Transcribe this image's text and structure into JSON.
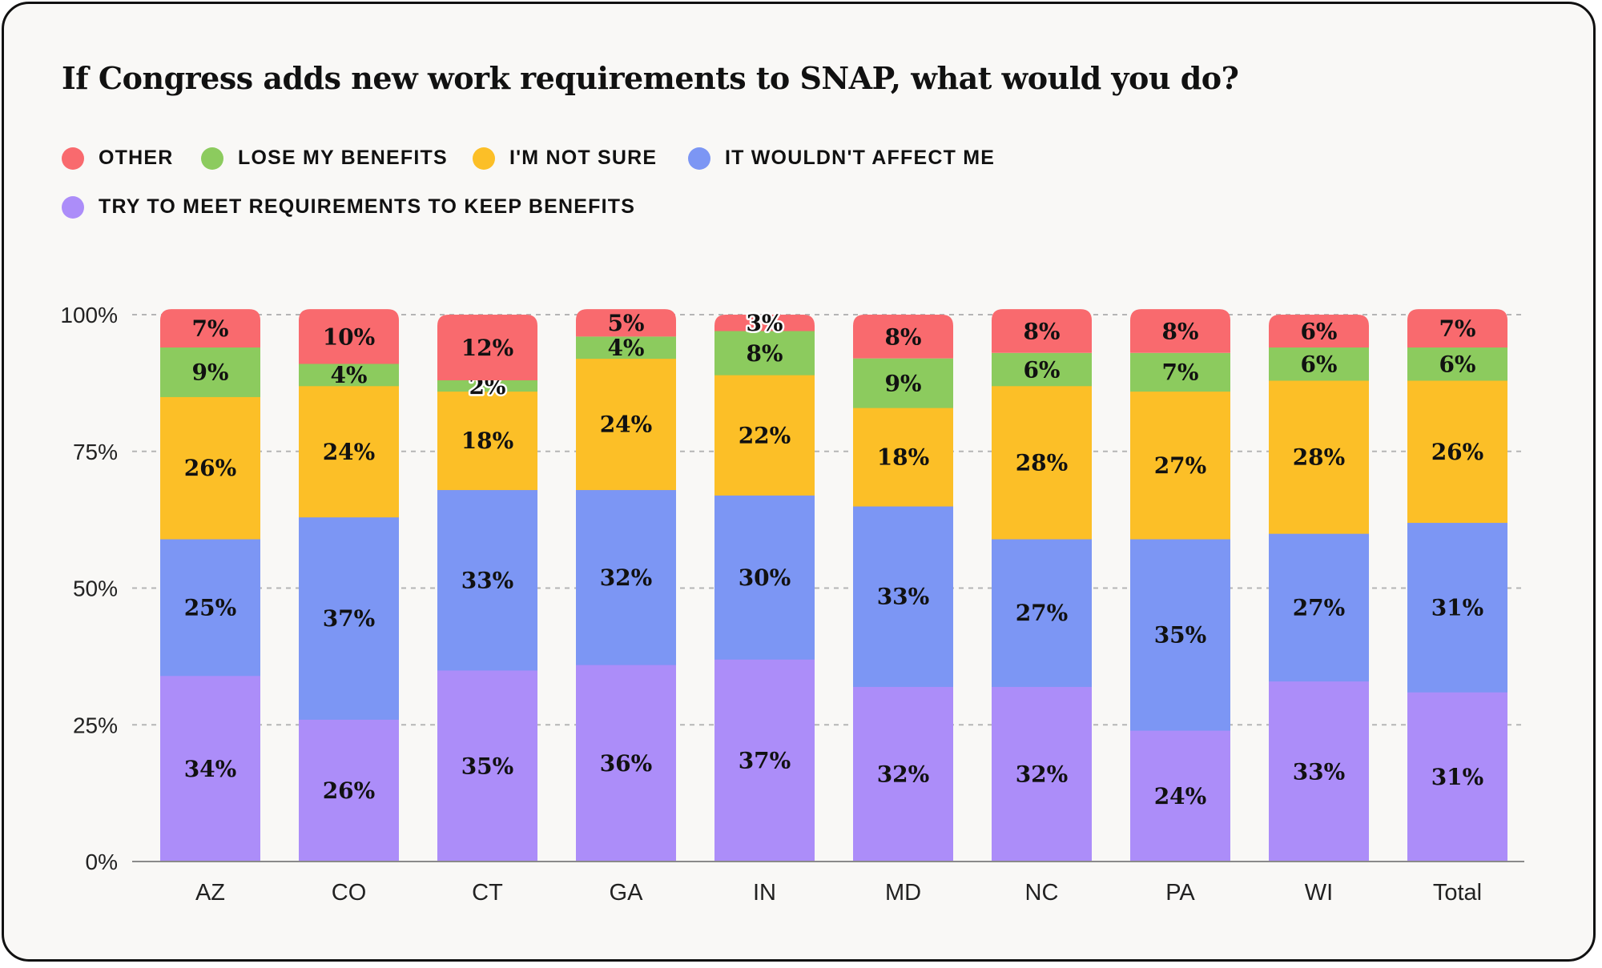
{
  "chart_data": {
    "type": "bar",
    "stacked": true,
    "title": "If Congress adds new work requirements to SNAP, what would you do?",
    "xlabel": "",
    "ylabel": "",
    "ylim": [
      0,
      100
    ],
    "yticks": [
      "0%",
      "25%",
      "50%",
      "75%",
      "100%"
    ],
    "legend_position": "top-left",
    "grid": true,
    "categories": [
      "AZ",
      "CO",
      "CT",
      "GA",
      "IN",
      "MD",
      "NC",
      "PA",
      "WI",
      "Total"
    ],
    "legend": [
      {
        "name": "OTHER",
        "color": "#f96a6e"
      },
      {
        "name": "LOSE MY BENEFITS",
        "color": "#8ccb5e"
      },
      {
        "name": "I'M NOT SURE",
        "color": "#fcbf27"
      },
      {
        "name": "IT WOULDN'T AFFECT ME",
        "color": "#7c96f4"
      },
      {
        "name": "TRY TO MEET REQUIREMENTS TO KEEP BENEFITS",
        "color": "#ac8df9"
      }
    ],
    "series": [
      {
        "name": "TRY TO MEET REQUIREMENTS TO KEEP BENEFITS",
        "color": "#ac8df9",
        "values": [
          34,
          26,
          35,
          36,
          37,
          32,
          32,
          24,
          33,
          31
        ]
      },
      {
        "name": "IT WOULDN'T AFFECT ME",
        "color": "#7c96f4",
        "values": [
          25,
          37,
          33,
          32,
          30,
          33,
          27,
          35,
          27,
          31
        ]
      },
      {
        "name": "I'M NOT SURE",
        "color": "#fcbf27",
        "values": [
          26,
          24,
          18,
          24,
          22,
          18,
          28,
          27,
          28,
          26
        ]
      },
      {
        "name": "LOSE MY BENEFITS",
        "color": "#8ccb5e",
        "values": [
          9,
          4,
          2,
          4,
          8,
          9,
          6,
          7,
          6,
          6
        ]
      },
      {
        "name": "OTHER",
        "color": "#f96a6e",
        "values": [
          7,
          10,
          12,
          5,
          3,
          8,
          8,
          8,
          6,
          7
        ]
      }
    ]
  }
}
